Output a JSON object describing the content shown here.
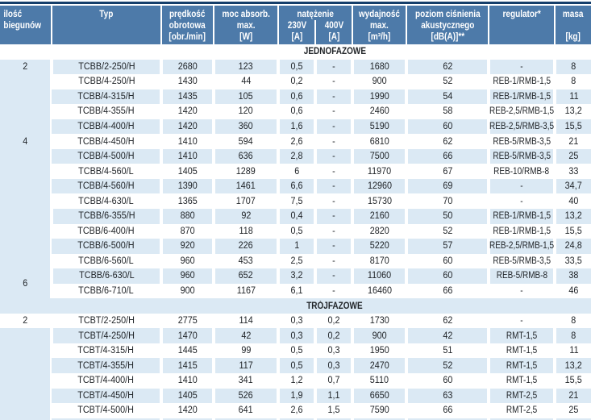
{
  "colors": {
    "top_border": "#153f6b",
    "header_bg": "#4d7aa9",
    "header_text": "#ffffff",
    "row_tint": "#dbe9f4",
    "row_plain": "#ffffff",
    "text": "#212529"
  },
  "header": {
    "poles": "ilość\nbiegunów",
    "typ": "Typ",
    "speed": "prędkość\nobrotowa\n[obr./min]",
    "power": "moc absorb.\nmax.\n[W]",
    "current": "natężenie",
    "current_230": "230V\n[A]",
    "current_400": "400V\n[A]",
    "flow": "wydajność\nmax.\n[m³/h]",
    "noise": "poziom ciśnienia\nakustycznego\n[dB(A)]**",
    "regulator": "regulator*",
    "mass": "masa\n\n[kg]"
  },
  "sections": [
    {
      "label": "JEDNOFAZOWE",
      "poles_groups": [
        {
          "label": "2",
          "span": 1,
          "tint": false
        },
        {
          "label": "4",
          "span": 9,
          "tint": true
        },
        {
          "label": "",
          "span": 4,
          "tint": false
        },
        {
          "label": "6",
          "span": 2,
          "tint": false
        }
      ],
      "rows": [
        [
          "TCBB/2-250/H",
          "2680",
          "123",
          "0,5",
          "-",
          "1680",
          "62",
          "-",
          "8"
        ],
        [
          "TCBB/4-250/H",
          "1430",
          "44",
          "0,2",
          "-",
          "900",
          "52",
          "REB-1/RMB-1,5",
          "8"
        ],
        [
          "TCBB/4-315/H",
          "1435",
          "105",
          "0,6",
          "-",
          "1990",
          "54",
          "REB-1/RMB-1,5",
          "11"
        ],
        [
          "TCBB/4-355/H",
          "1420",
          "120",
          "0,6",
          "-",
          "2460",
          "58",
          "REB-2,5/RMB-1,5",
          "13,2"
        ],
        [
          "TCBB/4-400/H",
          "1420",
          "360",
          "1,6",
          "-",
          "5190",
          "60",
          "REB-2,5/RMB-3,5",
          "15,5"
        ],
        [
          "TCBB/4-450/H",
          "1410",
          "594",
          "2,6",
          "-",
          "6810",
          "62",
          "REB-5/RMB-3,5",
          "21"
        ],
        [
          "TCBB/4-500/H",
          "1410",
          "636",
          "2,8",
          "-",
          "7500",
          "66",
          "REB-5/RMB-3,5",
          "25"
        ],
        [
          "TCBB/4-560/L",
          "1405",
          "1289",
          "6",
          "-",
          "11970",
          "67",
          "REB-10/RMB-8",
          "33"
        ],
        [
          "TCBB/4-560/H",
          "1390",
          "1461",
          "6,6",
          "-",
          "12960",
          "69",
          "-",
          "34,7"
        ],
        [
          "TCBB/4-630/L",
          "1365",
          "1707",
          "7,5",
          "-",
          "15730",
          "70",
          "-",
          "40"
        ],
        [
          "TCBB/6-355/H",
          "880",
          "92",
          "0,4",
          "-",
          "2160",
          "50",
          "REB-1/RMB-1,5",
          "13,2"
        ],
        [
          "TCBB/6-400/H",
          "870",
          "118",
          "0,5",
          "-",
          "2820",
          "52",
          "REB-1/RMB-1,5",
          "15,5"
        ],
        [
          "TCBB/6-500/H",
          "920",
          "226",
          "1",
          "-",
          "5220",
          "57",
          "REB-2,5/RMB-1,5",
          "24,8"
        ],
        [
          "TCBB/6-560/L",
          "960",
          "453",
          "2,5",
          "-",
          "8170",
          "60",
          "REB-5/RMB-3,5",
          "33,5"
        ],
        [
          "TCBB/6-630/L",
          "960",
          "652",
          "3,2",
          "-",
          "11060",
          "60",
          "REB-5/RMB-8",
          "38"
        ],
        [
          "TCBB/6-710/L",
          "900",
          "1167",
          "6,1",
          "-",
          "16460",
          "66",
          "-",
          "46"
        ]
      ]
    },
    {
      "label": "TRÓJFAZOWE",
      "poles_groups": [
        {
          "label": "2",
          "span": 1,
          "tint": false
        },
        {
          "label": "",
          "span": 7,
          "tint": true
        }
      ],
      "rows": [
        [
          "TCBT/2-250/H",
          "2775",
          "114",
          "0,3",
          "0,2",
          "1730",
          "62",
          "-",
          "8"
        ],
        [
          "TCBT/4-250/H",
          "1470",
          "42",
          "0,3",
          "0,2",
          "900",
          "42",
          "RMT-1,5",
          "8"
        ],
        [
          "TCBT/4-315/H",
          "1445",
          "99",
          "0,5",
          "0,3",
          "1950",
          "51",
          "RMT-1,5",
          "11"
        ],
        [
          "TCBT/4-355/H",
          "1415",
          "117",
          "0,5",
          "0,3",
          "2470",
          "52",
          "RMT-1,5",
          "13,2"
        ],
        [
          "TCBT/4-400/H",
          "1410",
          "341",
          "1,2",
          "0,7",
          "5110",
          "60",
          "RMT-1,5",
          "15,5"
        ],
        [
          "TCBT/4-450/H",
          "1405",
          "526",
          "1,9",
          "1,1",
          "6650",
          "63",
          "RMT-2,5",
          "21"
        ],
        [
          "TCBT/4-500/H",
          "1420",
          "641",
          "2,6",
          "1,5",
          "7590",
          "66",
          "RMT-2,5",
          "25"
        ],
        [
          "",
          "",
          "",
          "",
          "",
          "",
          "",
          "",
          ""
        ]
      ]
    }
  ]
}
